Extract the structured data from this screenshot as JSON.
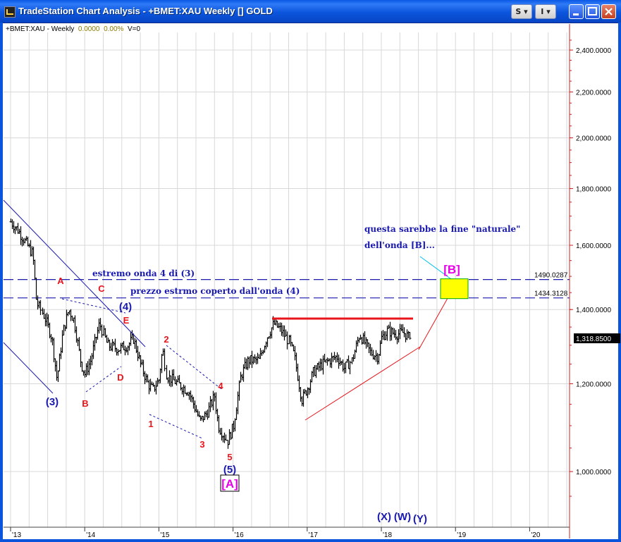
{
  "window": {
    "title": "TradeStation Chart Analysis - +BMET:XAU Weekly [] GOLD",
    "buttons": {
      "s_label": "S",
      "i_label": "I",
      "menu_arrow": "▾"
    }
  },
  "status_bar": {
    "symbol": "+BMET:XAU - Weekly",
    "last_value": "0.0000",
    "change_pct": "0.00%",
    "volume": "V=0"
  },
  "colors": {
    "price_bars": "#000000",
    "wave_labels_red": "#e8151b",
    "wave_labels_blue": "#1a1ab0",
    "magenta": "#e800e8",
    "axis": "#cc2222",
    "target_box": "#ffff00"
  },
  "chart_data": {
    "type": "ohlc",
    "symbol": "+BMET:XAU",
    "timeframe": "Weekly",
    "x_tick_labels": [
      "'13",
      "'14",
      "'15",
      "'16",
      "'17",
      "'18",
      "'19",
      "'20"
    ],
    "y_tick_labels": [
      "2,400.0000",
      "2,200.0000",
      "2,000.0000",
      "1,800.0000",
      "1,600.0000",
      "1,400.0000",
      "1,200.0000",
      "1,000.0000"
    ],
    "y_ticks": [
      2400,
      2200,
      2000,
      1800,
      1600,
      1400,
      1200,
      1000
    ],
    "y_scale": "log",
    "last_price_label": "1,318.8500",
    "last_price": 1318.85,
    "grid": true,
    "close_series": [
      [
        2013.0,
        1680
      ],
      [
        2013.1,
        1650
      ],
      [
        2013.2,
        1610
      ],
      [
        2013.3,
        1570
      ],
      [
        2013.35,
        1420
      ],
      [
        2013.45,
        1380
      ],
      [
        2013.55,
        1320
      ],
      [
        2013.62,
        1210
      ],
      [
        2013.7,
        1335
      ],
      [
        2013.78,
        1400
      ],
      [
        2013.85,
        1370
      ],
      [
        2013.95,
        1250
      ],
      [
        2014.0,
        1225
      ],
      [
        2014.08,
        1260
      ],
      [
        2014.15,
        1320
      ],
      [
        2014.2,
        1360
      ],
      [
        2014.3,
        1300
      ],
      [
        2014.45,
        1290
      ],
      [
        2014.58,
        1300
      ],
      [
        2014.65,
        1320
      ],
      [
        2014.75,
        1250
      ],
      [
        2014.85,
        1200
      ],
      [
        2014.92,
        1185
      ],
      [
        2015.0,
        1210
      ],
      [
        2015.05,
        1290
      ],
      [
        2015.1,
        1220
      ],
      [
        2015.25,
        1200
      ],
      [
        2015.4,
        1180
      ],
      [
        2015.55,
        1110
      ],
      [
        2015.65,
        1130
      ],
      [
        2015.75,
        1170
      ],
      [
        2015.8,
        1100
      ],
      [
        2015.92,
        1065
      ],
      [
        2016.0,
        1100
      ],
      [
        2016.1,
        1220
      ],
      [
        2016.2,
        1260
      ],
      [
        2016.35,
        1260
      ],
      [
        2016.45,
        1320
      ],
      [
        2016.55,
        1360
      ],
      [
        2016.65,
        1340
      ],
      [
        2016.75,
        1310
      ],
      [
        2016.82,
        1270
      ],
      [
        2016.92,
        1160
      ],
      [
        2017.0,
        1190
      ],
      [
        2017.08,
        1230
      ],
      [
        2017.2,
        1250
      ],
      [
        2017.4,
        1270
      ],
      [
        2017.5,
        1240
      ],
      [
        2017.6,
        1260
      ],
      [
        2017.7,
        1330
      ],
      [
        2017.85,
        1280
      ],
      [
        2017.95,
        1270
      ],
      [
        2018.0,
        1320
      ],
      [
        2018.08,
        1340
      ],
      [
        2018.2,
        1330
      ],
      [
        2018.3,
        1335
      ],
      [
        2018.38,
        1318.85
      ]
    ],
    "horizontal_levels": [
      {
        "label": "1490.0287",
        "value": 1490.0287
      },
      {
        "label": "1434.3128",
        "value": 1434.3128
      }
    ],
    "annotations": {
      "level_notes": [
        {
          "text": "estremo onda 4 di (3)"
        },
        {
          "text": "prezzo estrmo coperto dall'onda (4)"
        }
      ],
      "target_note_line1": "questa sarebbe la fine \"naturale\"",
      "target_note_line2": "dell'onda [B]...",
      "wave_labels_red": [
        "A",
        "B",
        "C",
        "D",
        "E",
        "1",
        "2",
        "3",
        "4",
        "5"
      ],
      "wave_labels_blue": [
        "(3)",
        "(4)",
        "(5)",
        "(X)",
        "(W)",
        "(Y)"
      ],
      "wave_labels_magenta": [
        "[A]",
        "[B]"
      ]
    }
  }
}
